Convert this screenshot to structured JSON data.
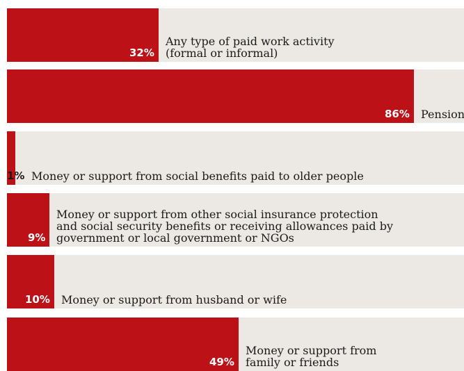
{
  "chart_data": {
    "type": "bar",
    "orientation": "horizontal",
    "xlim": [
      0,
      100
    ],
    "categories": [
      "Any type of paid work activity\n(formal or informal)",
      "Pension",
      "Money or support from social benefits paid to older people",
      "Money or support from other social insurance protection\nand social security benefits or receiving allowances paid by\ngovernment or local government or NGOs",
      "Money or support from husband or wife",
      "Money or support from\nfamily or friends"
    ],
    "values": [
      32,
      86,
      1,
      9,
      10,
      49
    ],
    "value_labels": [
      "32%",
      "86%",
      "1%",
      "9%",
      "10%",
      "49%"
    ],
    "colors": {
      "bar": "#bd1118",
      "track": "#ece8e4",
      "value_text": "#ffffff",
      "label_text": "#1a1a1a"
    }
  }
}
